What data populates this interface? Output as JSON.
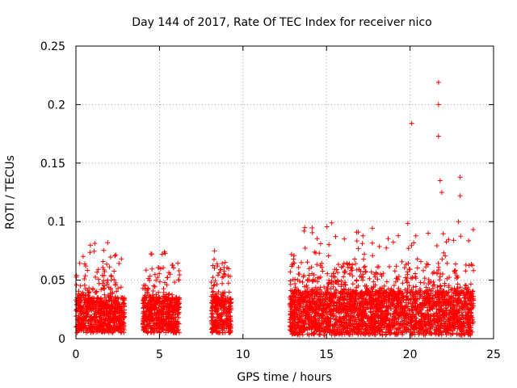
{
  "chart_data": {
    "type": "scatter",
    "title": "Day 144 of 2017, Rate Of TEC Index for receiver nico",
    "xlabel": "GPS time / hours",
    "ylabel": "ROTI / TECUs",
    "xlim": [
      0,
      25
    ],
    "ylim": [
      0,
      0.25
    ],
    "xticks": [
      0,
      5,
      10,
      15,
      20,
      25
    ],
    "yticks": [
      0,
      0.05,
      0.1,
      0.15,
      0.2,
      0.25
    ],
    "xtick_labels": [
      "0",
      "5",
      "10",
      "15",
      "20",
      "25"
    ],
    "ytick_labels": [
      "0",
      "0.05",
      "0.1",
      "0.15",
      "0.2",
      "0.25"
    ],
    "grid": true,
    "marker": "plus",
    "series": [
      {
        "name": "ROTI",
        "color": "#ff0000",
        "clusters": [
          {
            "x_range": [
              0.0,
              2.9
            ],
            "y_base": [
              0.005,
              0.035
            ],
            "spike_max": 0.082
          },
          {
            "x_range": [
              4.0,
              6.2
            ],
            "y_base": [
              0.005,
              0.035
            ],
            "spike_max": 0.074
          },
          {
            "x_range": [
              8.1,
              9.3
            ],
            "y_base": [
              0.005,
              0.035
            ],
            "spike_max": 0.075
          },
          {
            "x_range": [
              12.8,
              23.8
            ],
            "y_base": [
              0.003,
              0.04
            ],
            "spike_max": 0.22
          }
        ],
        "notable_points": [
          {
            "x": 1.9,
            "y": 0.082
          },
          {
            "x": 5.3,
            "y": 0.074
          },
          {
            "x": 8.3,
            "y": 0.075
          },
          {
            "x": 12.9,
            "y": 0.072
          },
          {
            "x": 16.8,
            "y": 0.091
          },
          {
            "x": 19.3,
            "y": 0.088
          },
          {
            "x": 20.1,
            "y": 0.184
          },
          {
            "x": 21.7,
            "y": 0.219
          },
          {
            "x": 21.7,
            "y": 0.2
          },
          {
            "x": 21.7,
            "y": 0.173
          },
          {
            "x": 21.8,
            "y": 0.135
          },
          {
            "x": 21.9,
            "y": 0.125
          },
          {
            "x": 23.0,
            "y": 0.138
          },
          {
            "x": 23.0,
            "y": 0.122
          },
          {
            "x": 22.9,
            "y": 0.1
          }
        ]
      }
    ]
  }
}
